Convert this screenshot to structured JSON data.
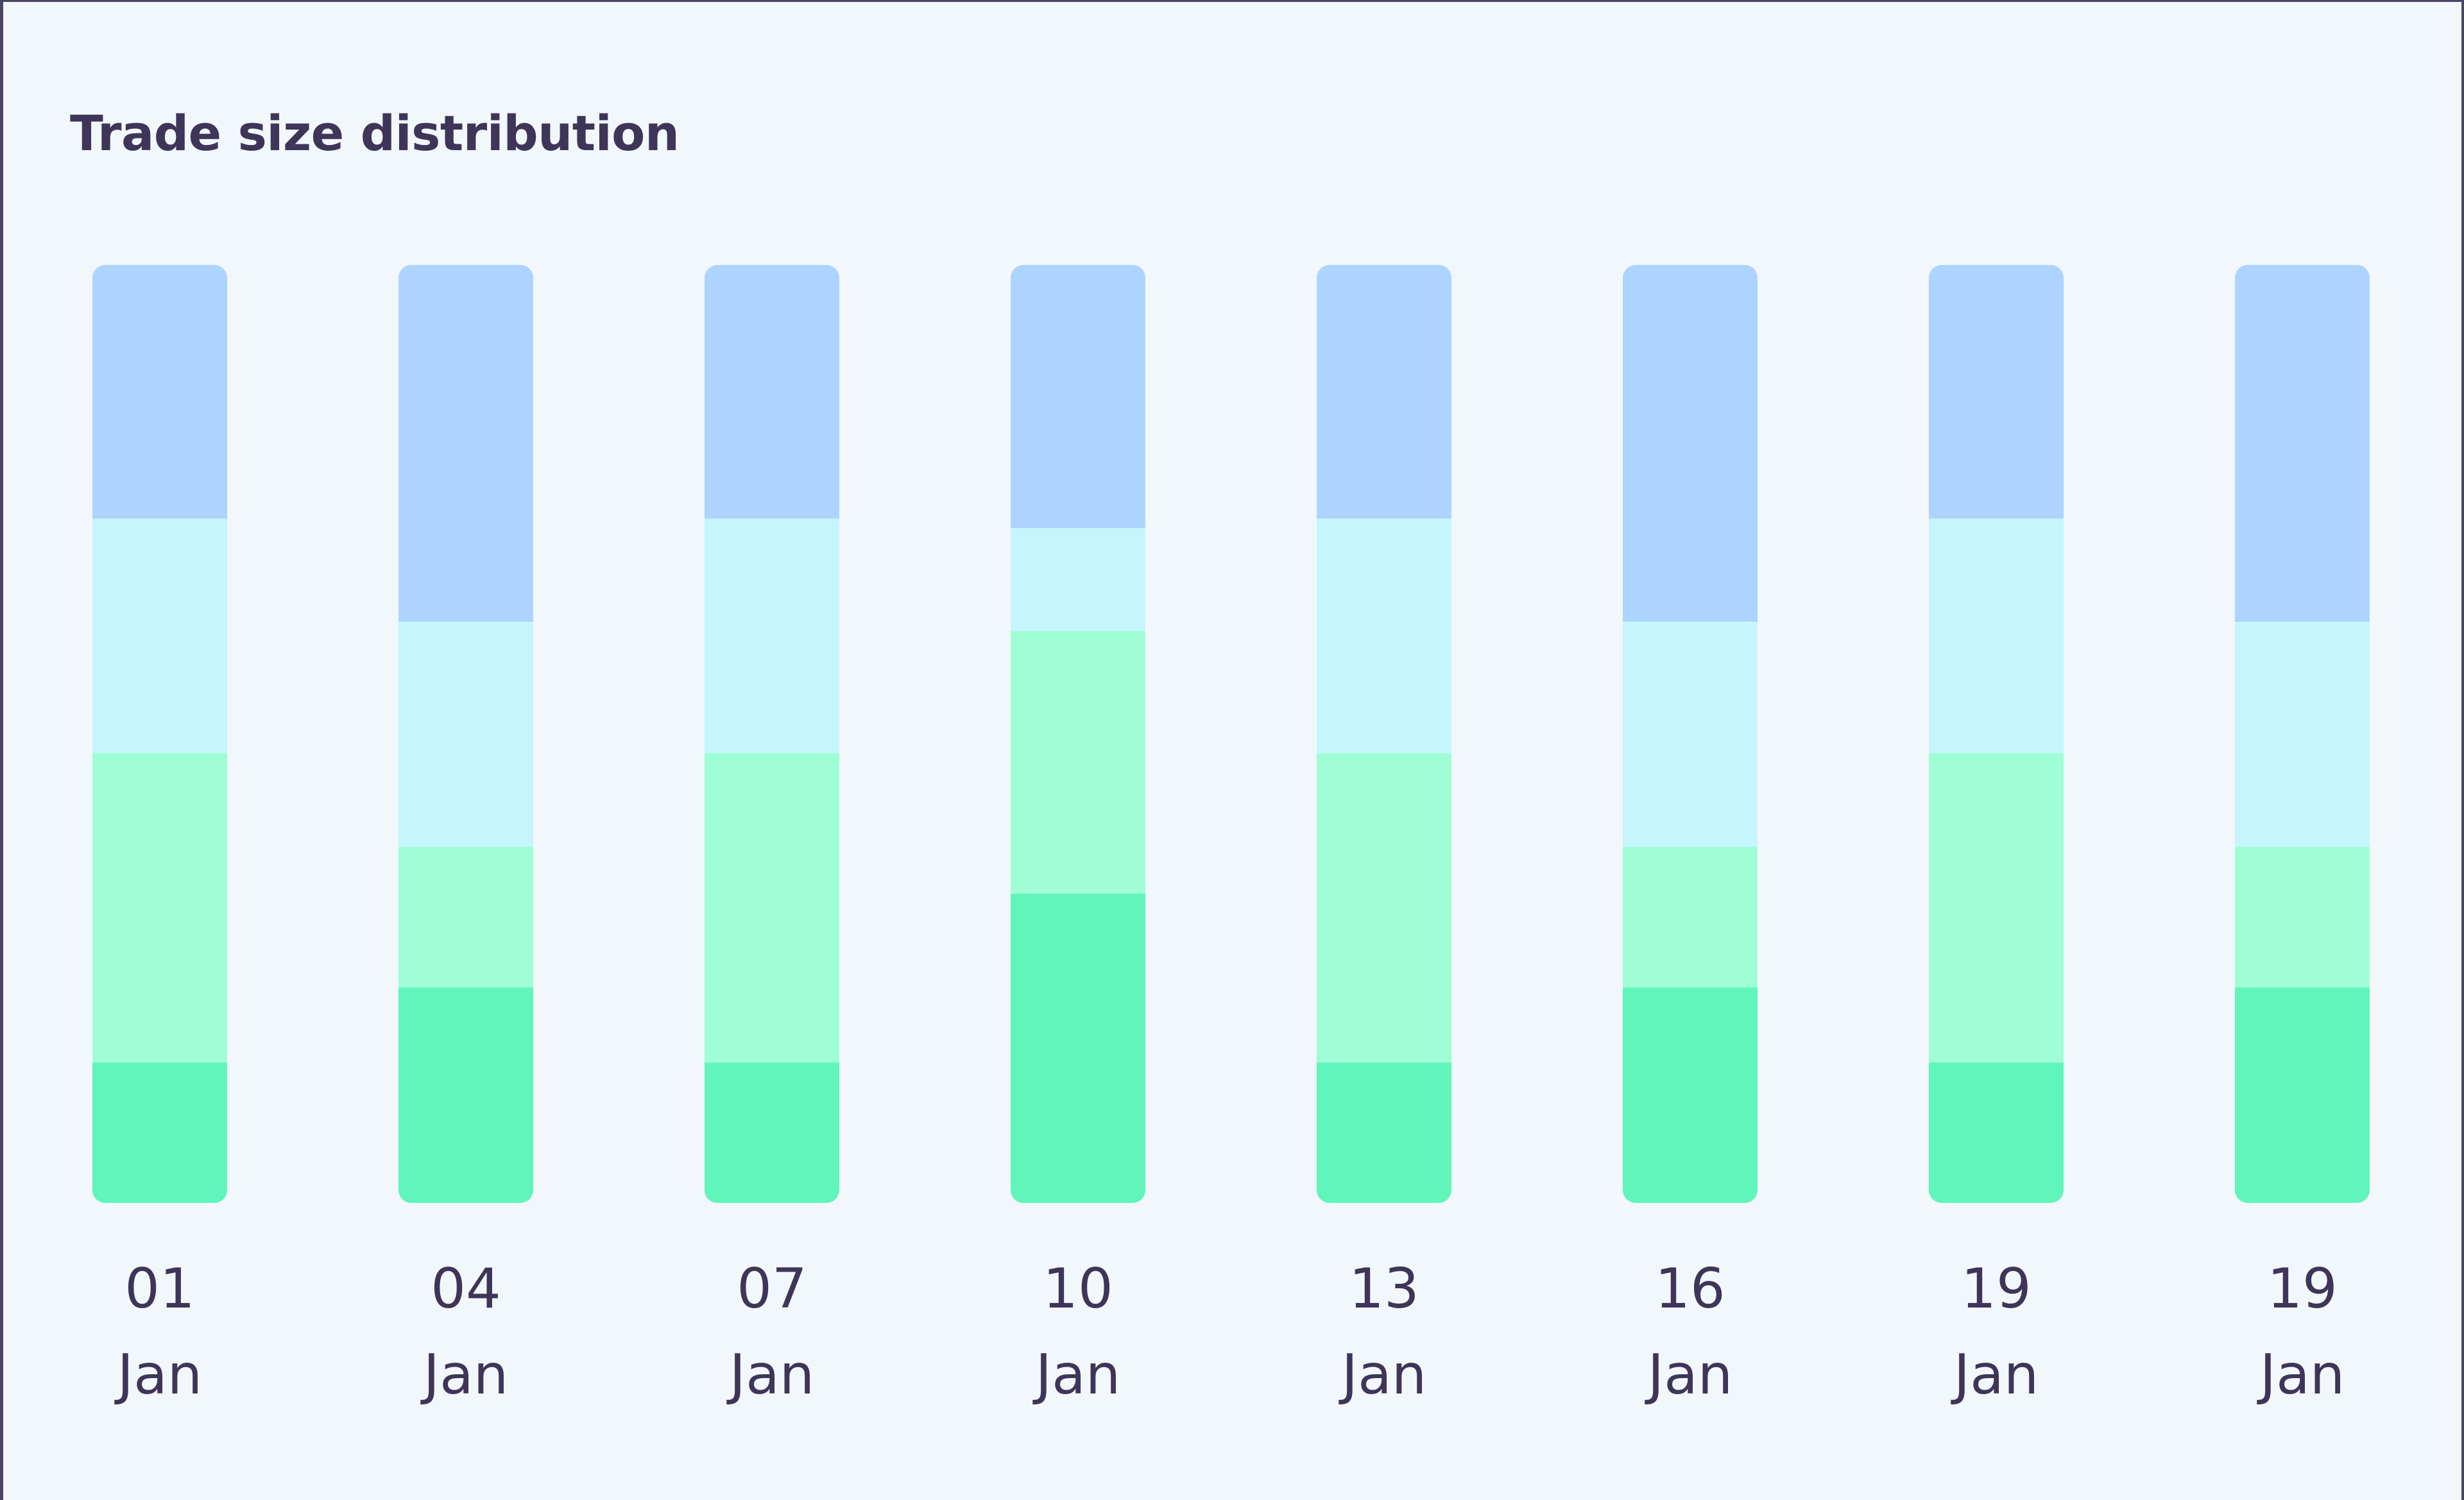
{
  "title": "Trade size distribution",
  "chart_data": {
    "type": "bar",
    "stacked": true,
    "normalized": true,
    "categories": [
      [
        "01",
        "Jan"
      ],
      [
        "04",
        "Jan"
      ],
      [
        "07",
        "Jan"
      ],
      [
        "10",
        "Jan"
      ],
      [
        "13",
        "Jan"
      ],
      [
        "16",
        "Jan"
      ],
      [
        "19",
        "Jan"
      ],
      [
        "19",
        "Jan"
      ]
    ],
    "series": [
      {
        "values": [
          15,
          23,
          15,
          33,
          15,
          23,
          15,
          23
        ],
        "color": "#60f5bb"
      },
      {
        "values": [
          33,
          15,
          33,
          28,
          33,
          15,
          33,
          15
        ],
        "color": "#9ffed6"
      },
      {
        "values": [
          25,
          24,
          25,
          11,
          25,
          24,
          25,
          24
        ],
        "color": "#c6f6fd"
      },
      {
        "values": [
          27,
          38,
          27,
          28,
          27,
          38,
          27,
          38
        ],
        "color": "#acd4fe"
      }
    ],
    "ylim": [
      0,
      100
    ],
    "grid": false,
    "legend": "none"
  }
}
